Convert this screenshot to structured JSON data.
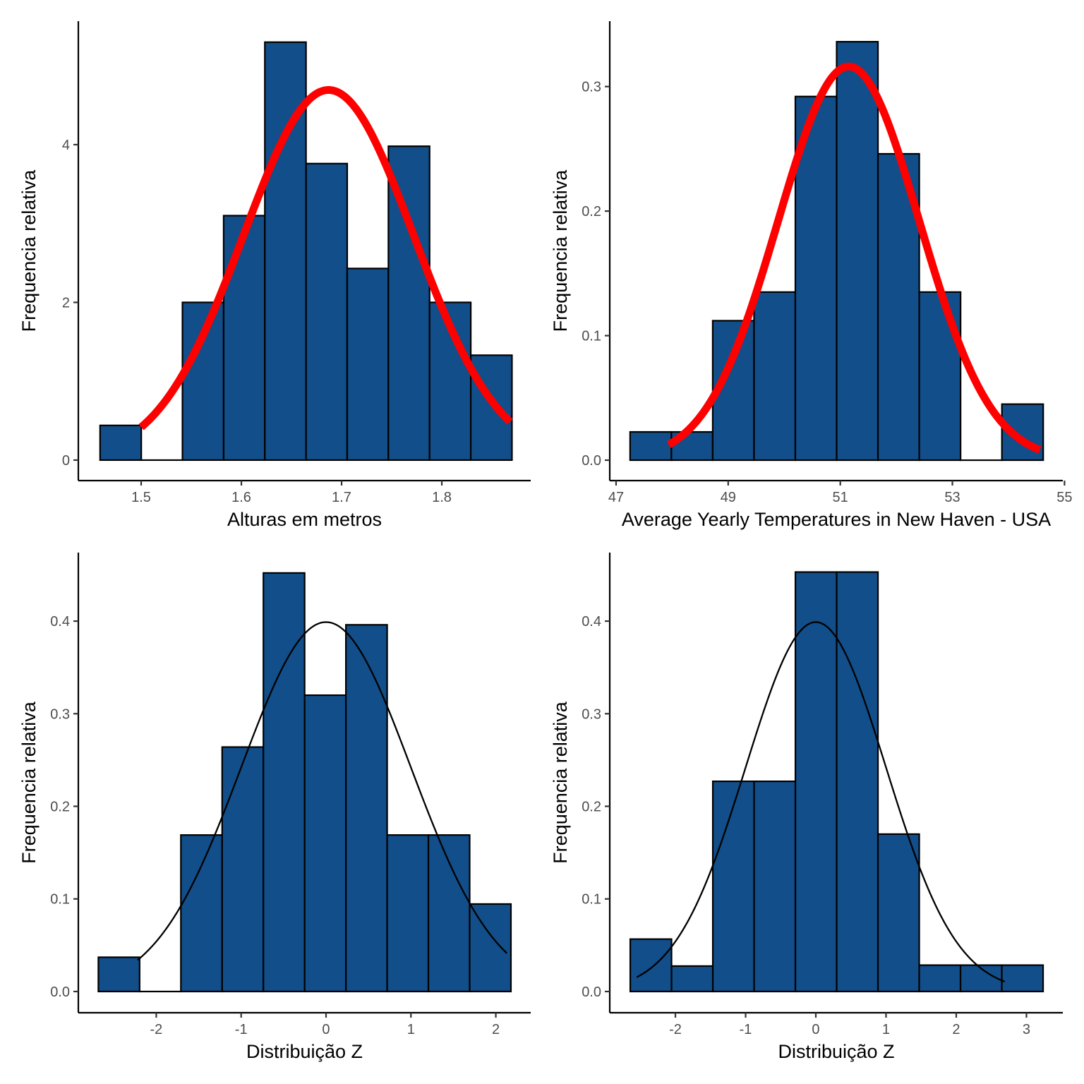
{
  "figure": {
    "bar_fill": "#124E89",
    "bar_stroke": "#000000",
    "axis_color": "#000000",
    "tick_label_color": "#4D4D4D"
  },
  "chart_data": [
    {
      "type": "bar",
      "subtype": "histogram",
      "position": "top-left",
      "xlabel": "Alturas em metros",
      "ylabel": "Frequencia relativa",
      "xlim": [
        1.4373,
        1.8887
      ],
      "ylim": [
        -0.26,
        5.566
      ],
      "xticks": [
        1.5,
        1.6,
        1.7,
        1.8
      ],
      "xtick_labels": [
        "1.5",
        "1.6",
        "1.7",
        "1.8"
      ],
      "yticks": [
        0,
        2,
        4
      ],
      "ytick_labels": [
        "0",
        "2",
        "4"
      ],
      "bin_start": 1.459,
      "bin_width": 0.0411,
      "values": [
        0.44,
        0,
        2.0,
        3.1,
        5.3,
        3.76,
        2.43,
        3.98,
        2.0,
        1.33
      ],
      "curve": {
        "kind": "normal",
        "mean": 1.687,
        "sd": 0.085,
        "from": 1.5,
        "to": 1.868,
        "color": "#FF0000",
        "width": "thick"
      }
    },
    {
      "type": "bar",
      "subtype": "histogram",
      "position": "top-right",
      "xlabel": "Average Yearly Temperatures in New Haven - USA",
      "ylabel": "Frequencia relativa",
      "xlim": [
        46.887,
        54.97
      ],
      "ylim": [
        -0.0164,
        0.3525
      ],
      "xticks": [
        47,
        49,
        51,
        53,
        55
      ],
      "xtick_labels": [
        "47",
        "49",
        "51",
        "53",
        "55"
      ],
      "yticks": [
        0.0,
        0.1,
        0.2,
        0.3
      ],
      "ytick_labels": [
        "0.0",
        "0.1",
        "0.2",
        "0.3"
      ],
      "bin_start": 47.25,
      "bin_width": 0.737,
      "values": [
        0.0227,
        0.0227,
        0.112,
        0.135,
        0.292,
        0.336,
        0.246,
        0.135,
        0,
        0.045
      ],
      "curve": {
        "kind": "normal",
        "mean": 51.15,
        "sd": 1.262,
        "from": 47.94,
        "to": 54.56,
        "color": "#FF0000",
        "width": "thick"
      }
    },
    {
      "type": "bar",
      "subtype": "histogram",
      "position": "bottom-left",
      "xlabel": "Distribuição Z",
      "ylabel": "Frequencia relativa",
      "xlim": [
        -2.918,
        2.411
      ],
      "ylim": [
        -0.0229,
        0.474
      ],
      "xticks": [
        -2,
        -1,
        0,
        1,
        2
      ],
      "xtick_labels": [
        "-2",
        "-1",
        "0",
        "1",
        "2"
      ],
      "yticks": [
        0.0,
        0.1,
        0.2,
        0.3,
        0.4
      ],
      "ytick_labels": [
        "0.0",
        "0.1",
        "0.2",
        "0.3",
        "0.4"
      ],
      "bin_start": -2.682,
      "bin_width": 0.486,
      "values": [
        0.037,
        0,
        0.169,
        0.264,
        0.452,
        0.32,
        0.396,
        0.169,
        0.169,
        0.0945
      ],
      "curve": {
        "kind": "normal",
        "mean": 0,
        "sd": 1,
        "from": -2.22,
        "to": 2.13,
        "color": "#000000",
        "width": "thin"
      }
    },
    {
      "type": "bar",
      "subtype": "histogram",
      "position": "bottom-right",
      "xlabel": "Distribuição Z",
      "ylabel": "Frequencia relativa",
      "xlim": [
        -2.935,
        3.518
      ],
      "ylim": [
        -0.0229,
        0.474
      ],
      "xticks": [
        -2,
        -1,
        0,
        1,
        2,
        3
      ],
      "xtick_labels": [
        "-2",
        "-1",
        "0",
        "1",
        "2",
        "3"
      ],
      "yticks": [
        0.0,
        0.1,
        0.2,
        0.3,
        0.4
      ],
      "ytick_labels": [
        "0.0",
        "0.1",
        "0.2",
        "0.3",
        "0.4"
      ],
      "bin_start": -2.643,
      "bin_width": 0.588,
      "values": [
        0.0566,
        0.0275,
        0.227,
        0.227,
        0.453,
        0.453,
        0.17,
        0.0285,
        0.0285,
        0.0285
      ],
      "curve": {
        "kind": "normal",
        "mean": 0,
        "sd": 1,
        "from": -2.55,
        "to": 2.69,
        "color": "#000000",
        "width": "thin"
      }
    }
  ]
}
